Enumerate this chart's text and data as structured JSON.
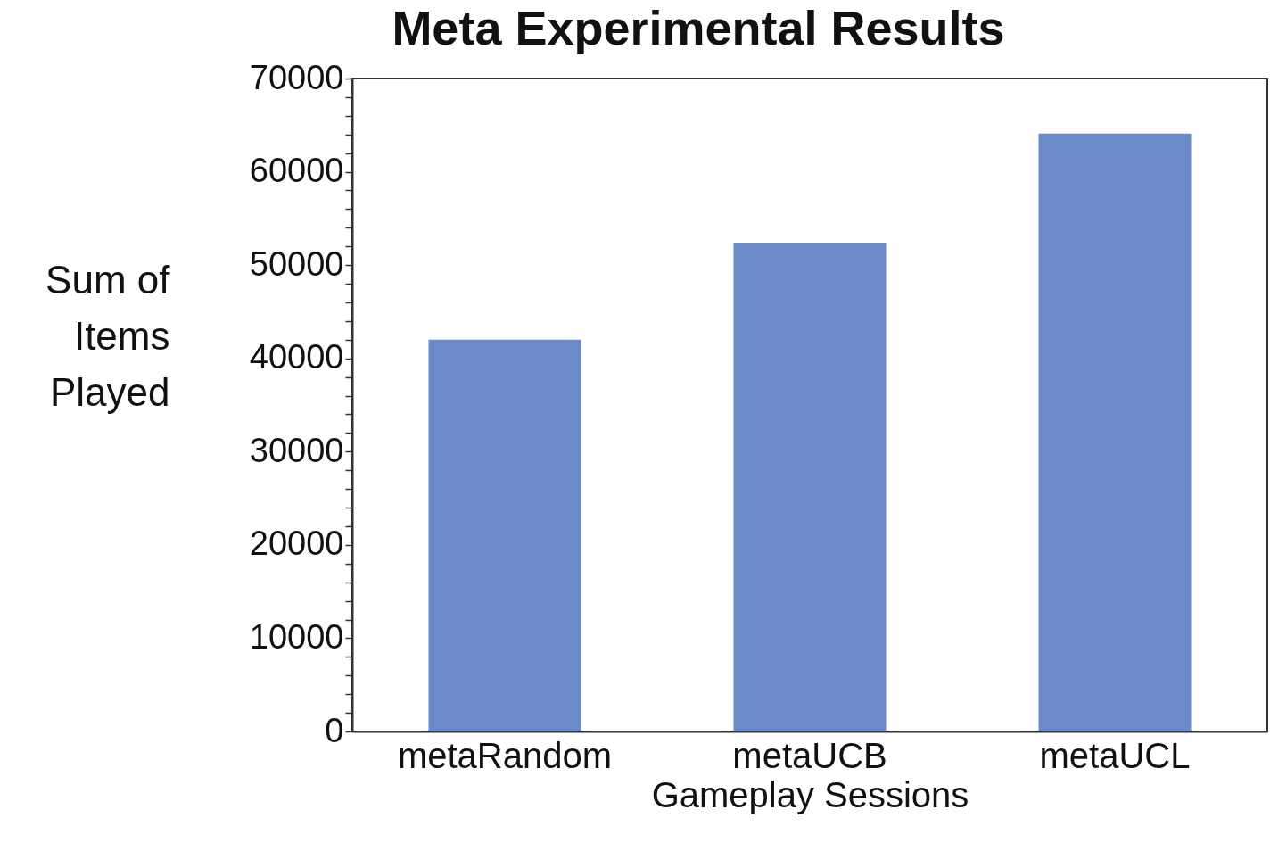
{
  "chart_data": {
    "type": "bar",
    "title": "Meta Experimental Results",
    "xlabel": "Gameplay Sessions",
    "ylabel": "Sum of\nItems\nPlayed",
    "categories": [
      "metaRandom",
      "metaUCB",
      "metaUCL"
    ],
    "values": [
      42000,
      52400,
      64100
    ],
    "color": "#6a8ac8",
    "ylim": [
      0,
      70000
    ],
    "yticks": [
      0,
      {
        "value": 2000,
        "label": null
      },
      {
        "value": 4000,
        "label": null
      },
      {
        "value": 6000,
        "label": null
      },
      {
        "value": 8000,
        "label": null
      },
      10000,
      {
        "value": 12000,
        "label": null
      },
      {
        "value": 14000,
        "label": null
      },
      {
        "value": 16000,
        "label": null
      },
      {
        "value": 18000,
        "label": null
      },
      20000,
      {
        "value": 22000,
        "label": null
      },
      {
        "value": 24000,
        "label": null
      },
      {
        "value": 26000,
        "label": null
      },
      {
        "value": 28000,
        "label": null
      },
      30000,
      {
        "value": 32000,
        "label": null
      },
      {
        "value": 34000,
        "label": null
      },
      {
        "value": 36000,
        "label": null
      },
      {
        "value": 38000,
        "label": null
      },
      40000,
      {
        "value": 42000,
        "label": null
      },
      {
        "value": 44000,
        "label": null
      },
      {
        "value": 46000,
        "label": null
      },
      {
        "value": 48000,
        "label": null
      },
      50000,
      {
        "value": 52000,
        "label": null
      },
      {
        "value": 54000,
        "label": null
      },
      {
        "value": 56000,
        "label": null
      },
      {
        "value": 58000,
        "label": null
      },
      60000,
      {
        "value": 62000,
        "label": null
      },
      {
        "value": 64000,
        "label": null
      },
      {
        "value": 66000,
        "label": null
      },
      {
        "value": 68000,
        "label": null
      },
      70000
    ],
    "grid": false,
    "legend": false
  }
}
